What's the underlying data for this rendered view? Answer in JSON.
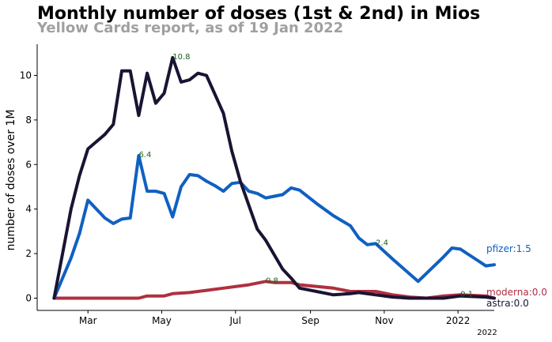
{
  "chart_data": {
    "type": "line",
    "title": "Monthly number of doses (1st & 2nd)  in Mios",
    "subtitle": "Yellow Cards report, as of 19 Jan 2022",
    "ylabel": "number of doses over 1M",
    "xlabel": "",
    "ylim": [
      -0.55,
      11.4
    ],
    "xlim": [
      "2021-01-18",
      "2022-01-31"
    ],
    "y_ticks": [
      0,
      2,
      4,
      6,
      8,
      10
    ],
    "x_ticks": [
      {
        "date": "2021-03-01",
        "label": "Mar"
      },
      {
        "date": "2021-05-01",
        "label": "May"
      },
      {
        "date": "2021-07-01",
        "label": "Jul"
      },
      {
        "date": "2021-09-01",
        "label": "Sep"
      },
      {
        "date": "2021-11-01",
        "label": "Nov"
      },
      {
        "date": "2022-01-01",
        "label": "2022"
      }
    ],
    "year_note": "2022",
    "grid": false,
    "series": [
      {
        "name": "pfizer",
        "color": "#1060c0",
        "end_label": "pfizer:1.5",
        "points": [
          [
            "2021-02-01",
            0.0
          ],
          [
            "2021-02-08",
            0.9
          ],
          [
            "2021-02-15",
            1.8
          ],
          [
            "2021-02-22",
            2.9
          ],
          [
            "2021-03-01",
            4.4
          ],
          [
            "2021-03-08",
            4.0
          ],
          [
            "2021-03-15",
            3.6
          ],
          [
            "2021-03-22",
            3.35
          ],
          [
            "2021-03-29",
            3.55
          ],
          [
            "2021-04-05",
            3.6
          ],
          [
            "2021-04-12",
            6.4
          ],
          [
            "2021-04-19",
            4.8
          ],
          [
            "2021-04-26",
            4.8
          ],
          [
            "2021-05-03",
            4.7
          ],
          [
            "2021-05-10",
            3.65
          ],
          [
            "2021-05-17",
            5.0
          ],
          [
            "2021-05-24",
            5.55
          ],
          [
            "2021-05-31",
            5.5
          ],
          [
            "2021-06-07",
            5.25
          ],
          [
            "2021-06-14",
            5.05
          ],
          [
            "2021-06-21",
            4.8
          ],
          [
            "2021-06-28",
            5.15
          ],
          [
            "2021-07-05",
            5.2
          ],
          [
            "2021-07-12",
            4.8
          ],
          [
            "2021-07-19",
            4.7
          ],
          [
            "2021-07-26",
            4.5
          ],
          [
            "2021-08-09",
            4.65
          ],
          [
            "2021-08-16",
            4.95
          ],
          [
            "2021-08-23",
            4.85
          ],
          [
            "2021-09-06",
            4.25
          ],
          [
            "2021-09-20",
            3.7
          ],
          [
            "2021-10-04",
            3.25
          ],
          [
            "2021-10-11",
            2.7
          ],
          [
            "2021-10-18",
            2.4
          ],
          [
            "2021-10-25",
            2.45
          ],
          [
            "2021-11-01",
            2.1
          ],
          [
            "2021-11-08",
            1.75
          ],
          [
            "2021-11-29",
            0.75
          ],
          [
            "2021-12-20",
            1.85
          ],
          [
            "2021-12-27",
            2.25
          ],
          [
            "2022-01-03",
            2.2
          ],
          [
            "2022-01-10",
            1.95
          ],
          [
            "2022-01-17",
            1.7
          ],
          [
            "2022-01-24",
            1.45
          ],
          [
            "2022-01-31",
            1.5
          ]
        ]
      },
      {
        "name": "astra",
        "color": "#1a1433",
        "end_label": "astra:0.0",
        "points": [
          [
            "2021-02-01",
            0.0
          ],
          [
            "2021-02-15",
            4.0
          ],
          [
            "2021-02-22",
            5.5
          ],
          [
            "2021-03-01",
            6.7
          ],
          [
            "2021-03-15",
            7.35
          ],
          [
            "2021-03-22",
            7.8
          ],
          [
            "2021-03-29",
            10.2
          ],
          [
            "2021-04-05",
            10.2
          ],
          [
            "2021-04-12",
            8.2
          ],
          [
            "2021-04-19",
            10.1
          ],
          [
            "2021-04-26",
            8.75
          ],
          [
            "2021-05-03",
            9.2
          ],
          [
            "2021-05-10",
            10.8
          ],
          [
            "2021-05-17",
            9.7
          ],
          [
            "2021-05-24",
            9.8
          ],
          [
            "2021-05-31",
            10.1
          ],
          [
            "2021-06-07",
            10.0
          ],
          [
            "2021-06-21",
            8.3
          ],
          [
            "2021-06-28",
            6.6
          ],
          [
            "2021-07-05",
            5.25
          ],
          [
            "2021-07-19",
            3.1
          ],
          [
            "2021-07-26",
            2.6
          ],
          [
            "2021-08-09",
            1.3
          ],
          [
            "2021-08-16",
            0.9
          ],
          [
            "2021-08-23",
            0.45
          ],
          [
            "2021-09-06",
            0.3
          ],
          [
            "2021-09-20",
            0.15
          ],
          [
            "2021-10-04",
            0.2
          ],
          [
            "2021-10-11",
            0.25
          ],
          [
            "2021-10-25",
            0.15
          ],
          [
            "2021-11-08",
            0.05
          ],
          [
            "2021-11-22",
            0.0
          ],
          [
            "2021-12-20",
            0.0
          ],
          [
            "2022-01-03",
            0.1
          ],
          [
            "2022-01-24",
            0.05
          ],
          [
            "2022-01-31",
            0.0
          ]
        ]
      },
      {
        "name": "moderna",
        "color": "#b03040",
        "end_label": "moderna:0.0",
        "points": [
          [
            "2021-02-01",
            0.0
          ],
          [
            "2021-03-01",
            0.0
          ],
          [
            "2021-04-05",
            0.0
          ],
          [
            "2021-04-12",
            0.0
          ],
          [
            "2021-04-19",
            0.1
          ],
          [
            "2021-04-26",
            0.1
          ],
          [
            "2021-05-03",
            0.1
          ],
          [
            "2021-05-10",
            0.2
          ],
          [
            "2021-05-24",
            0.25
          ],
          [
            "2021-06-07",
            0.35
          ],
          [
            "2021-06-21",
            0.45
          ],
          [
            "2021-07-05",
            0.55
          ],
          [
            "2021-07-12",
            0.6
          ],
          [
            "2021-07-26",
            0.75
          ],
          [
            "2021-08-02",
            0.7
          ],
          [
            "2021-08-16",
            0.7
          ],
          [
            "2021-08-23",
            0.6
          ],
          [
            "2021-09-20",
            0.45
          ],
          [
            "2021-10-04",
            0.3
          ],
          [
            "2021-10-25",
            0.3
          ],
          [
            "2021-11-08",
            0.15
          ],
          [
            "2021-11-22",
            0.05
          ],
          [
            "2021-12-06",
            0.0
          ],
          [
            "2021-12-20",
            0.1
          ],
          [
            "2022-01-03",
            0.15
          ],
          [
            "2022-01-24",
            0.1
          ],
          [
            "2022-01-31",
            0.0
          ]
        ]
      }
    ],
    "annotations": [
      {
        "text": "10.8",
        "date": "2021-05-10",
        "value": 10.8
      },
      {
        "text": "6.4",
        "date": "2021-04-12",
        "value": 6.4
      },
      {
        "text": "0.8",
        "date": "2021-07-26",
        "value": 0.75
      },
      {
        "text": "2.4",
        "date": "2021-10-25",
        "value": 2.45
      },
      {
        "text": "0.1",
        "date": "2022-01-03",
        "value": 0.15
      }
    ]
  }
}
